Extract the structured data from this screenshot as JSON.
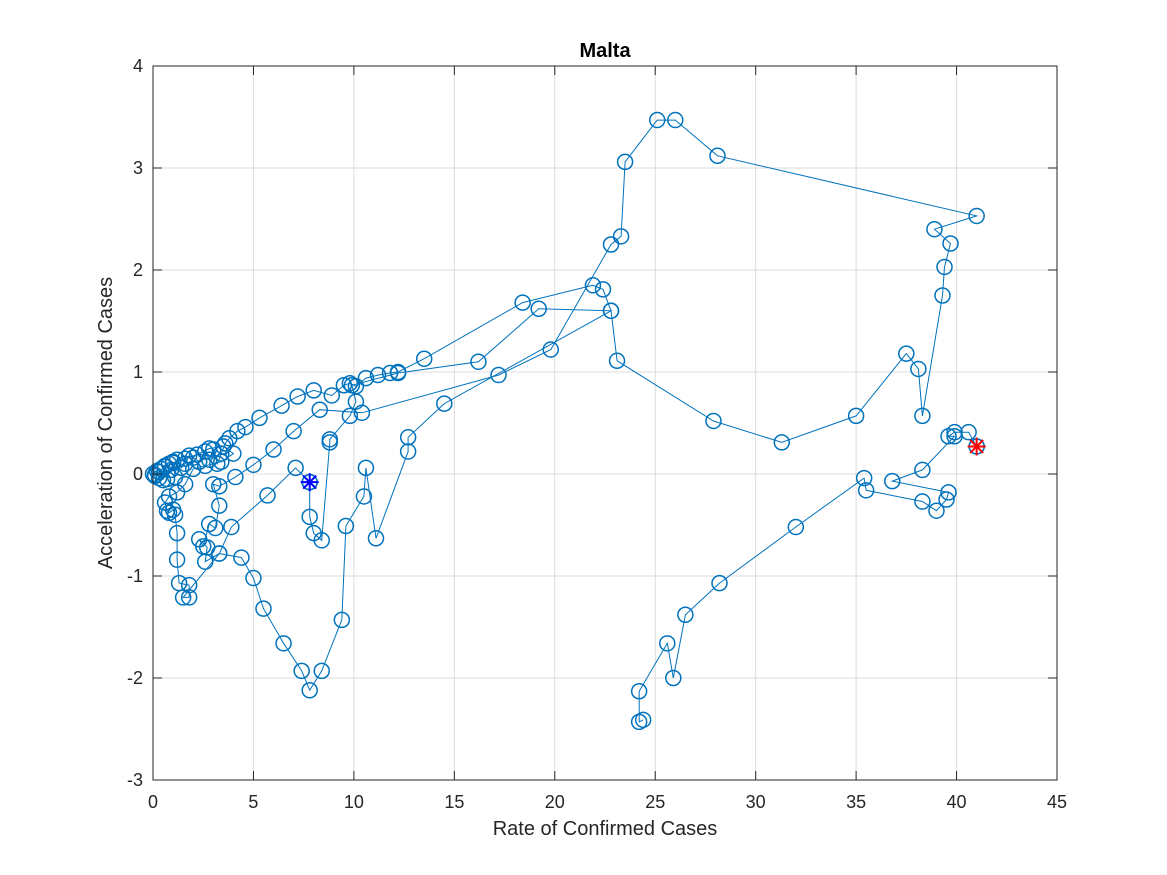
{
  "colors": {
    "series": "#0072BD",
    "start_marker": "#0000FF",
    "end_marker": "#FF0000",
    "end_circle": "#0072BD",
    "grid": "#DCDCDC",
    "axes": "#262626"
  },
  "chart_data": {
    "type": "line",
    "title": "Malta",
    "xlabel": "Rate of Confirmed Cases",
    "ylabel": "Acceleration of Confirmed Cases",
    "xlim": [
      0,
      45
    ],
    "ylim": [
      -3,
      4
    ],
    "xticks": [
      0,
      5,
      10,
      15,
      20,
      25,
      30,
      35,
      40,
      45
    ],
    "yticks": [
      -3,
      -2,
      -1,
      0,
      1,
      2,
      3,
      4
    ],
    "xtick_labels": [
      "0",
      "5",
      "10",
      "15",
      "20",
      "25",
      "30",
      "35",
      "40",
      "45"
    ],
    "ytick_labels": [
      "-3",
      "-2",
      "-1",
      "0",
      "1",
      "2",
      "3",
      "4"
    ],
    "grid": true,
    "legend": "none",
    "marker": "circle",
    "start_point": [
      7.8,
      -0.08
    ],
    "end_point": [
      41.0,
      0.27
    ],
    "series": [
      {
        "points": [
          [
            0.0,
            0.0
          ],
          [
            0.1,
            -0.02
          ],
          [
            0.2,
            0.03
          ],
          [
            0.3,
            -0.04
          ],
          [
            0.4,
            0.05
          ],
          [
            0.5,
            -0.06
          ],
          [
            0.6,
            0.08
          ],
          [
            0.7,
            -0.05
          ],
          [
            0.8,
            0.1
          ],
          [
            0.9,
            0.04
          ],
          [
            1.0,
            0.12
          ],
          [
            1.1,
            -0.03
          ],
          [
            1.2,
            0.14
          ],
          [
            1.4,
            0.06
          ],
          [
            1.6,
            0.1
          ],
          [
            1.8,
            0.18
          ],
          [
            2.0,
            0.16
          ],
          [
            2.3,
            0.12
          ],
          [
            2.6,
            0.22
          ],
          [
            2.8,
            0.14
          ],
          [
            3.0,
            0.24
          ],
          [
            3.2,
            0.1
          ],
          [
            3.4,
            0.2
          ],
          [
            3.6,
            0.3
          ],
          [
            3.8,
            0.35
          ],
          [
            4.2,
            0.42
          ],
          [
            4.6,
            0.46
          ],
          [
            5.3,
            0.55
          ],
          [
            6.4,
            0.67
          ],
          [
            7.2,
            0.76
          ],
          [
            8.0,
            0.82
          ],
          [
            8.9,
            0.77
          ],
          [
            9.5,
            0.87
          ],
          [
            9.8,
            0.89
          ],
          [
            10.1,
            0.86
          ],
          [
            10.6,
            0.94
          ],
          [
            11.2,
            0.97
          ],
          [
            11.8,
            0.99
          ],
          [
            12.2,
            1.0
          ],
          [
            13.5,
            1.13
          ],
          [
            18.4,
            1.68
          ],
          [
            21.9,
            1.85
          ],
          [
            22.4,
            1.81
          ],
          [
            22.8,
            1.6
          ],
          [
            23.1,
            1.11
          ],
          [
            27.9,
            0.52
          ],
          [
            31.3,
            0.31
          ],
          [
            35.0,
            0.57
          ],
          [
            37.5,
            1.18
          ],
          [
            38.1,
            1.03
          ],
          [
            38.3,
            0.57
          ],
          [
            39.3,
            1.75
          ],
          [
            39.4,
            2.03
          ],
          [
            39.7,
            2.26
          ],
          [
            38.9,
            2.4
          ],
          [
            41.0,
            2.53
          ],
          [
            28.1,
            3.12
          ],
          [
            26.0,
            3.47
          ],
          [
            25.1,
            3.47
          ],
          [
            23.5,
            3.06
          ],
          [
            23.3,
            2.33
          ],
          [
            22.8,
            2.25
          ],
          [
            19.8,
            1.22
          ],
          [
            17.2,
            0.97
          ],
          [
            10.4,
            0.6
          ],
          [
            8.3,
            0.63
          ],
          [
            7.0,
            0.42
          ],
          [
            6.0,
            0.24
          ],
          [
            5.0,
            0.09
          ],
          [
            4.1,
            -0.03
          ],
          [
            3.3,
            -0.12
          ],
          [
            3.0,
            -0.1
          ],
          [
            3.3,
            -0.31
          ],
          [
            3.1,
            -0.53
          ],
          [
            2.8,
            -0.49
          ],
          [
            2.5,
            -0.71
          ],
          [
            2.3,
            -0.64
          ],
          [
            2.7,
            -0.72
          ],
          [
            2.6,
            -0.86
          ],
          [
            3.3,
            -0.78
          ],
          [
            3.9,
            -0.52
          ],
          [
            5.7,
            -0.21
          ],
          [
            7.1,
            0.06
          ],
          [
            7.8,
            -0.08
          ]
        ]
      },
      {
        "points": [
          [
            7.8,
            -0.08
          ],
          [
            7.8,
            -0.42
          ],
          [
            8.0,
            -0.58
          ],
          [
            8.4,
            -0.65
          ],
          [
            8.8,
            0.31
          ],
          [
            8.8,
            0.34
          ],
          [
            9.8,
            0.57
          ],
          [
            10.1,
            0.71
          ],
          [
            9.9,
            0.87
          ],
          [
            12.2,
            0.99
          ],
          [
            16.2,
            1.1
          ],
          [
            19.2,
            1.62
          ],
          [
            22.8,
            1.6
          ],
          [
            14.5,
            0.69
          ],
          [
            12.7,
            0.36
          ],
          [
            12.7,
            0.22
          ],
          [
            11.1,
            -0.63
          ],
          [
            10.6,
            0.06
          ],
          [
            10.5,
            -0.22
          ],
          [
            9.6,
            -0.51
          ],
          [
            9.4,
            -1.43
          ],
          [
            8.4,
            -1.93
          ],
          [
            7.8,
            -2.12
          ],
          [
            7.4,
            -1.93
          ],
          [
            6.5,
            -1.66
          ],
          [
            5.5,
            -1.32
          ],
          [
            5.0,
            -1.02
          ],
          [
            4.4,
            -0.82
          ],
          [
            3.3,
            -0.78
          ],
          [
            1.5,
            -1.21
          ],
          [
            1.8,
            -1.21
          ],
          [
            1.8,
            -1.09
          ],
          [
            1.3,
            -1.07
          ],
          [
            1.2,
            -0.84
          ],
          [
            1.2,
            -0.58
          ],
          [
            1.1,
            -0.4
          ],
          [
            1.0,
            -0.35
          ],
          [
            0.8,
            -0.38
          ],
          [
            0.7,
            -0.36
          ],
          [
            0.6,
            -0.28
          ],
          [
            0.8,
            -0.22
          ],
          [
            1.2,
            -0.18
          ],
          [
            1.6,
            -0.1
          ],
          [
            2.0,
            0.05
          ],
          [
            2.6,
            0.08
          ],
          [
            3.4,
            0.12
          ],
          [
            4.0,
            0.2
          ],
          [
            3.5,
            0.27
          ],
          [
            2.8,
            0.25
          ],
          [
            2.2,
            0.19
          ],
          [
            1.6,
            0.15
          ],
          [
            1.0,
            0.11
          ],
          [
            0.6,
            0.07
          ],
          [
            0.3,
            0.02
          ],
          [
            0.1,
            -0.01
          ]
        ]
      },
      {
        "points": [
          [
            41.0,
            0.27
          ],
          [
            40.6,
            0.41
          ],
          [
            39.9,
            0.41
          ],
          [
            39.6,
            0.37
          ],
          [
            39.9,
            0.37
          ],
          [
            38.3,
            0.04
          ],
          [
            36.8,
            -0.07
          ],
          [
            39.6,
            -0.18
          ],
          [
            39.5,
            -0.25
          ],
          [
            39.0,
            -0.36
          ],
          [
            38.3,
            -0.27
          ],
          [
            35.5,
            -0.16
          ],
          [
            35.4,
            -0.04
          ],
          [
            32.0,
            -0.52
          ],
          [
            28.2,
            -1.07
          ],
          [
            26.5,
            -1.38
          ],
          [
            25.9,
            -2.0
          ],
          [
            25.6,
            -1.66
          ],
          [
            24.2,
            -2.13
          ],
          [
            24.2,
            -2.43
          ],
          [
            24.4,
            -2.41
          ]
        ]
      }
    ]
  }
}
